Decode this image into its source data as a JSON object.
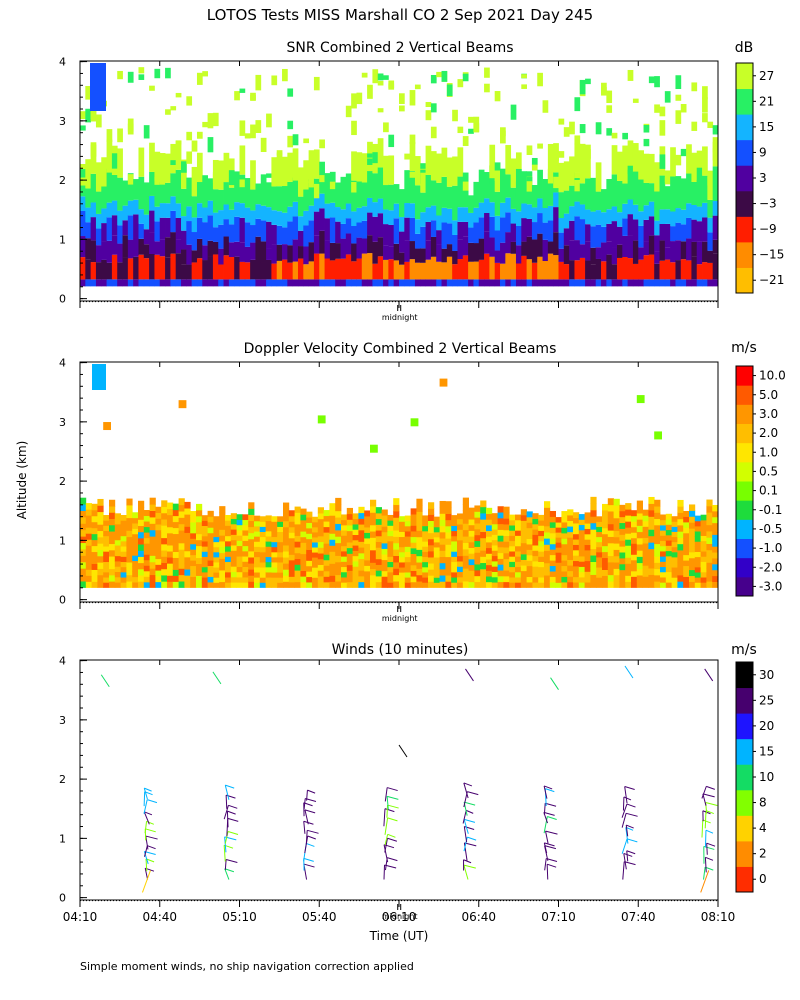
{
  "header": {
    "title": "LOTOS Tests MISS Marshall CO   2 Sep 2021 Day 245",
    "footnote": "Simple moment winds, no ship navigation correction applied"
  },
  "colors": {
    "snr": [
      "#c8ff28",
      "#28f064",
      "#14b4ff",
      "#1450ff",
      "#5000a0",
      "#3c0a46",
      "#ff1e00",
      "#ff8c00",
      "#ffbe00"
    ],
    "dop": [
      "#ff0000",
      "#ff5a00",
      "#ff9600",
      "#ffbe00",
      "#ffe600",
      "#d2ff00",
      "#78ff00",
      "#1edc3c",
      "#00b4ff",
      "#1450ff",
      "#3200c8",
      "#46008c",
      "#320a3c"
    ],
    "wind": [
      "#000000",
      "#46006e",
      "#1e14ff",
      "#00b4ff",
      "#14dc64",
      "#82ff00",
      "#ffd200",
      "#ff8c00",
      "#ff2d00"
    ]
  },
  "chart_data": [
    {
      "type": "heatmap",
      "title": "SNR Combined 2 Vertical Beams",
      "ylabel": "Altitude (km)",
      "ylim": [
        0,
        4
      ],
      "xlim": [
        "04:10",
        "08:10"
      ],
      "yticks": [
        "0",
        "1",
        "2",
        "3",
        "4"
      ],
      "midnight_label": "midnight",
      "colorbar": {
        "unit": "dB",
        "labels": [
          "27",
          "21",
          "15",
          "9",
          "3",
          "−3",
          "−9",
          "−15",
          "−21"
        ]
      }
    },
    {
      "type": "heatmap",
      "title": "Doppler Velocity Combined 2 Vertical Beams",
      "ylabel": "Altitude (km)",
      "ylim": [
        0,
        4
      ],
      "xlim": [
        "04:10",
        "08:10"
      ],
      "yticks": [
        "0",
        "1",
        "2",
        "3",
        "4"
      ],
      "midnight_label": "midnight",
      "colorbar": {
        "unit": "m/s",
        "labels": [
          "10.0",
          "5.0",
          "3.0",
          "2.0",
          "1.0",
          "0.5",
          "0.1",
          "-0.1",
          "-0.5",
          "-1.0",
          "-2.0",
          "-3.0"
        ]
      }
    },
    {
      "type": "scatter",
      "title": "Winds (10 minutes)",
      "ylabel": "Altitude (km)",
      "xlabel": "Time (UT)",
      "ylim": [
        0,
        4
      ],
      "xlim": [
        "04:10",
        "08:10"
      ],
      "yticks": [
        "0",
        "1",
        "2",
        "3",
        "4"
      ],
      "xticks": [
        "04:10",
        "04:40",
        "05:10",
        "05:40",
        "06:10",
        "06:40",
        "07:10",
        "07:40",
        "08:10"
      ],
      "midnight_label": "midnight",
      "profile_times_min": [
        25,
        55,
        85,
        115,
        145,
        175,
        205,
        235
      ],
      "colorbar": {
        "unit": "m/s",
        "labels": [
          "30",
          "25",
          "20",
          "15",
          "10",
          "8",
          "4",
          "2",
          "0"
        ]
      }
    }
  ]
}
